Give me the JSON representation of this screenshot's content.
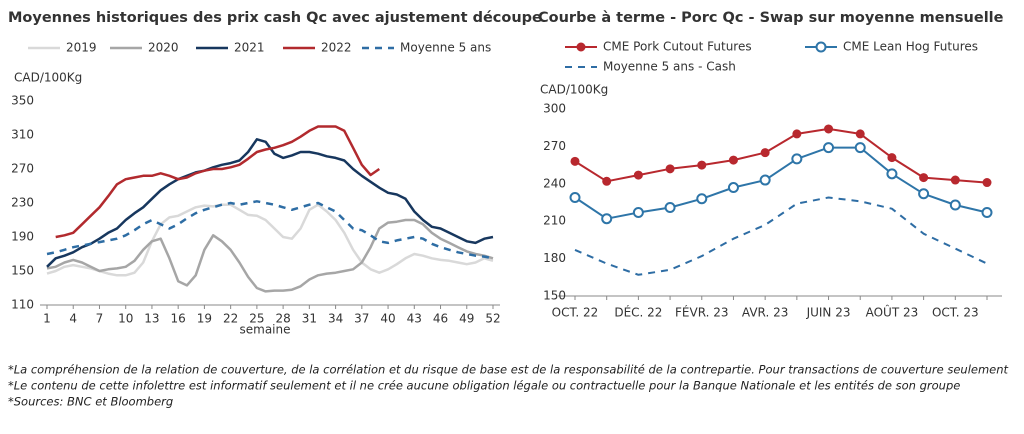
{
  "chart_data": [
    {
      "type": "line",
      "title": "Moyennes historiques des prix cash Qc avec ajustement découpe",
      "y_label": "CAD/100Kg",
      "x_label": "semaine",
      "x": [
        1,
        2,
        3,
        4,
        5,
        6,
        7,
        8,
        9,
        10,
        11,
        12,
        13,
        14,
        15,
        16,
        17,
        18,
        19,
        20,
        21,
        22,
        23,
        24,
        25,
        26,
        27,
        28,
        29,
        30,
        31,
        32,
        33,
        34,
        35,
        36,
        37,
        38,
        39,
        40,
        41,
        42,
        43,
        44,
        45,
        46,
        47,
        48,
        49,
        50,
        51,
        52
      ],
      "xlim": [
        1,
        52
      ],
      "xticks": [
        1,
        4,
        7,
        10,
        13,
        16,
        19,
        22,
        25,
        28,
        31,
        34,
        37,
        40,
        43,
        46,
        49,
        52
      ],
      "ylim": [
        110,
        350
      ],
      "yticks": [
        110,
        150,
        190,
        230,
        270,
        310,
        350
      ],
      "series": [
        {
          "name": "2019",
          "color": "#d9d9d9",
          "values": [
            147,
            150,
            155,
            157,
            155,
            153,
            150,
            147,
            145,
            145,
            148,
            160,
            185,
            205,
            213,
            215,
            220,
            225,
            227,
            226,
            228,
            228,
            222,
            216,
            215,
            210,
            200,
            190,
            188,
            200,
            222,
            228,
            220,
            210,
            195,
            175,
            160,
            152,
            148,
            152,
            158,
            165,
            170,
            168,
            165,
            163,
            162,
            160,
            158,
            160,
            165,
            162
          ]
        },
        {
          "name": "2020",
          "color": "#a6a6a6",
          "values": [
            153,
            155,
            160,
            163,
            160,
            155,
            150,
            152,
            153,
            155,
            162,
            175,
            185,
            188,
            165,
            138,
            133,
            145,
            175,
            192,
            185,
            175,
            160,
            143,
            130,
            126,
            127,
            127,
            128,
            132,
            140,
            145,
            147,
            148,
            150,
            152,
            160,
            178,
            200,
            207,
            208,
            210,
            210,
            205,
            195,
            188,
            183,
            178,
            173,
            170,
            168,
            165
          ]
        },
        {
          "name": "2021",
          "color": "#17375e",
          "values": [
            155,
            165,
            168,
            172,
            178,
            182,
            188,
            195,
            200,
            210,
            218,
            225,
            235,
            245,
            252,
            258,
            262,
            266,
            268,
            272,
            275,
            277,
            280,
            290,
            305,
            302,
            288,
            283,
            286,
            290,
            290,
            288,
            285,
            283,
            280,
            270,
            262,
            255,
            248,
            242,
            240,
            235,
            220,
            210,
            202,
            200,
            195,
            190,
            185,
            183,
            188,
            190
          ]
        },
        {
          "name": "2022",
          "color": "#b22a2e",
          "values": [
            null,
            190,
            192,
            195,
            205,
            215,
            225,
            238,
            252,
            258,
            260,
            262,
            262,
            265,
            262,
            258,
            260,
            265,
            268,
            270,
            270,
            272,
            275,
            282,
            290,
            293,
            295,
            298,
            302,
            308,
            315,
            320,
            320,
            320,
            315,
            295,
            275,
            263,
            270,
            null,
            null,
            null,
            null,
            null,
            null,
            null,
            null,
            null,
            null,
            null,
            null,
            null
          ]
        },
        {
          "name": "Moyenne 5 ans",
          "color": "#2e6da4",
          "dash": true,
          "values": [
            170,
            172,
            175,
            178,
            180,
            182,
            184,
            186,
            188,
            192,
            198,
            205,
            210,
            205,
            200,
            205,
            212,
            218,
            222,
            225,
            228,
            230,
            228,
            230,
            232,
            230,
            228,
            225,
            222,
            225,
            228,
            230,
            225,
            220,
            210,
            200,
            198,
            192,
            185,
            183,
            186,
            188,
            190,
            188,
            182,
            178,
            175,
            172,
            170,
            168,
            167,
            165
          ]
        }
      ]
    },
    {
      "type": "line",
      "title": "Courbe à terme - Porc Qc - Swap sur moyenne mensuelle",
      "y_label": "CAD/100Kg",
      "categories": [
        "OCT. 22",
        null,
        "DÉC. 22",
        null,
        "FÉVR. 23",
        null,
        "AVR. 23",
        null,
        "JUIN 23",
        null,
        "AOÛT 23",
        null,
        "OCT. 23",
        null
      ],
      "ylim": [
        150,
        300
      ],
      "yticks": [
        150,
        180,
        210,
        240,
        270,
        300
      ],
      "series": [
        {
          "name": "CME Pork Cutout Futures",
          "color": "#b8282e",
          "marker": "filled-circle",
          "values": [
            258,
            242,
            247,
            252,
            255,
            259,
            265,
            280,
            284,
            280,
            261,
            245,
            243,
            241
          ]
        },
        {
          "name": "CME Lean Hog Futures",
          "color": "#2e75a8",
          "marker": "open-circle",
          "values": [
            229,
            212,
            217,
            221,
            228,
            237,
            243,
            260,
            269,
            269,
            248,
            232,
            223,
            217
          ]
        },
        {
          "name": "Moyenne 5 ans - Cash",
          "color": "#2e6da4",
          "dash": true,
          "values": [
            187,
            176,
            167,
            171,
            182,
            196,
            207,
            224,
            229,
            226,
            220,
            200,
            188,
            176
          ]
        }
      ]
    }
  ],
  "notes": [
    "*La compréhension de la relation de couverture, de la corrélation et du risque de base est de la responsabilité de la contrepartie. Pour transactions de couverture seulement",
    "*Le contenu de cette infolettre est informatif seulement et il ne crée aucune obligation légale ou contractuelle pour la Banque Nationale et les entités de son groupe",
    "*Sources: BNC et Bloomberg"
  ]
}
